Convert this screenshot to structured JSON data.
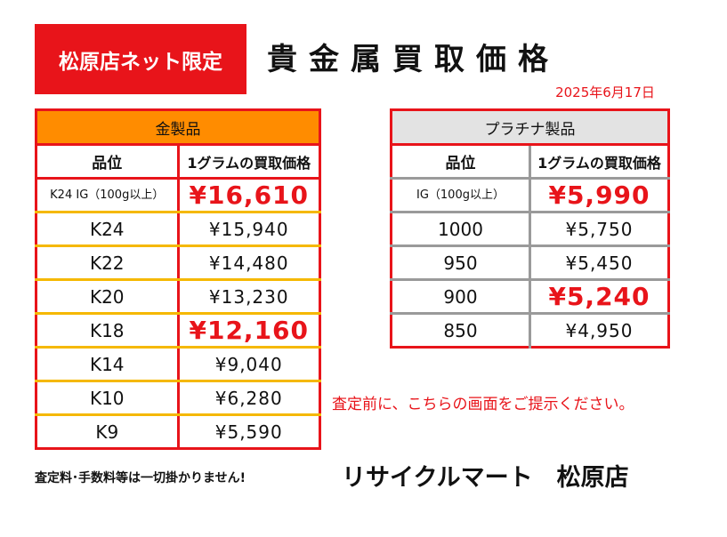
{
  "badge": "松原店ネット限定",
  "title": "貴金属買取価格",
  "date": "2025年6月17日",
  "gold": {
    "header": "金製品",
    "col_grade": "品位",
    "col_price": "1グラムの買取価格",
    "rows": [
      {
        "grade": "K24 IG（100g以上）",
        "price": "¥16,610",
        "highlight": true
      },
      {
        "grade": "K24",
        "price": "¥15,940",
        "highlight": false
      },
      {
        "grade": "K22",
        "price": "¥14,480",
        "highlight": false
      },
      {
        "grade": "K20",
        "price": "¥13,230",
        "highlight": false
      },
      {
        "grade": "K18",
        "price": "¥12,160",
        "highlight": true
      },
      {
        "grade": "K14",
        "price": "¥9,040",
        "highlight": false
      },
      {
        "grade": "K10",
        "price": "¥6,280",
        "highlight": false
      },
      {
        "grade": "K9",
        "price": "¥5,590",
        "highlight": false
      }
    ]
  },
  "platinum": {
    "header": "プラチナ製品",
    "col_grade": "品位",
    "col_price": "1グラムの買取価格",
    "rows": [
      {
        "grade": "IG（100g以上）",
        "price": "¥5,990",
        "highlight": true
      },
      {
        "grade": "1000",
        "price": "¥5,750",
        "highlight": false
      },
      {
        "grade": "950",
        "price": "¥5,450",
        "highlight": false
      },
      {
        "grade": "900",
        "price": "¥5,240",
        "highlight": true
      },
      {
        "grade": "850",
        "price": "¥4,950",
        "highlight": false
      }
    ]
  },
  "notice": "査定前に、こちらの画面をご提示ください。",
  "footnote": "査定料･手数料等は一切掛かりません!",
  "store": "リサイクルマート　松原店",
  "colors": {
    "accent_red": "#e8141a",
    "gold_header": "#ff8c00",
    "gold_border": "#f5b800",
    "plat_header": "#e3e3e3",
    "plat_border": "#9a9a9a"
  }
}
